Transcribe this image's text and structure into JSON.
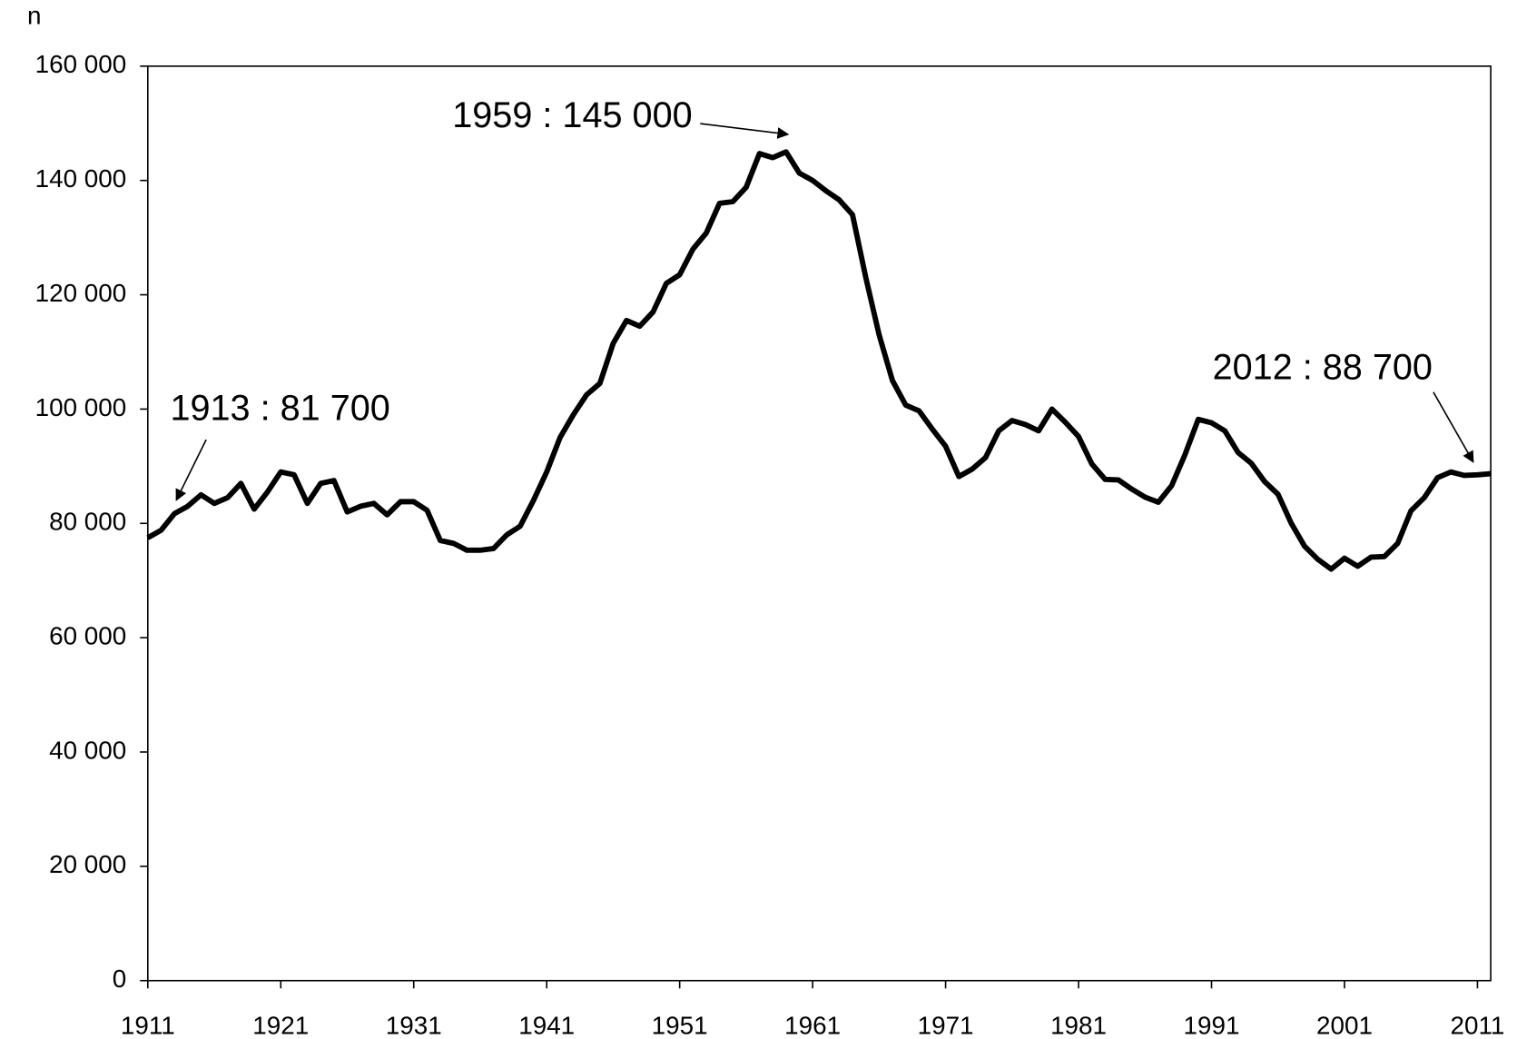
{
  "chart_data": {
    "type": "line",
    "y_label": "n",
    "x": [
      1911,
      1912,
      1913,
      1914,
      1915,
      1916,
      1917,
      1918,
      1919,
      1920,
      1921,
      1922,
      1923,
      1924,
      1925,
      1926,
      1927,
      1928,
      1929,
      1930,
      1931,
      1932,
      1933,
      1934,
      1935,
      1936,
      1937,
      1938,
      1939,
      1940,
      1941,
      1942,
      1943,
      1944,
      1945,
      1946,
      1947,
      1948,
      1949,
      1950,
      1951,
      1952,
      1953,
      1954,
      1955,
      1956,
      1957,
      1958,
      1959,
      1960,
      1961,
      1962,
      1963,
      1964,
      1965,
      1966,
      1967,
      1968,
      1969,
      1970,
      1971,
      1972,
      1973,
      1974,
      1975,
      1976,
      1977,
      1978,
      1979,
      1980,
      1981,
      1982,
      1983,
      1984,
      1985,
      1986,
      1987,
      1988,
      1989,
      1990,
      1991,
      1992,
      1993,
      1994,
      1995,
      1996,
      1997,
      1998,
      1999,
      2000,
      2001,
      2002,
      2003,
      2004,
      2005,
      2006,
      2007,
      2008,
      2009,
      2010,
      2011,
      2012
    ],
    "series": [
      {
        "color": "#000000",
        "values": [
          77500,
          78800,
          81700,
          83000,
          85000,
          83500,
          84500,
          87000,
          82500,
          85500,
          89000,
          88500,
          83500,
          87000,
          87500,
          82000,
          83000,
          83500,
          81500,
          83800,
          83800,
          82300,
          77000,
          76500,
          75300,
          75300,
          75600,
          78000,
          79500,
          84000,
          89000,
          95000,
          99000,
          102500,
          104500,
          111500,
          115500,
          114500,
          117000,
          122000,
          123500,
          128000,
          130800,
          136000,
          136300,
          138800,
          144700,
          144000,
          145000,
          141300,
          140000,
          138200,
          136600,
          134000,
          123000,
          113000,
          105000,
          100700,
          99700,
          96500,
          93500,
          88200,
          89500,
          91500,
          96200,
          98000,
          97300,
          96200,
          100000,
          97700,
          95200,
          90400,
          87700,
          87600,
          86000,
          84600,
          83700,
          86600,
          92000,
          98200,
          97600,
          96200,
          92400,
          90500,
          87300,
          85100,
          80000,
          76000,
          73700,
          72000,
          73900,
          72500,
          74100,
          74200,
          76500,
          82200,
          84500,
          88000,
          89000,
          88400,
          88500,
          88700
        ]
      }
    ],
    "xlim": [
      1911,
      2012
    ],
    "xticks": [
      1911,
      1921,
      1931,
      1941,
      1951,
      1961,
      1971,
      1981,
      1991,
      2001,
      2011
    ],
    "ylim": [
      0,
      160000
    ],
    "yticks": [
      0,
      {
        "value": 20000,
        "label": "20 000"
      },
      {
        "value": 40000,
        "label": "40 000"
      },
      {
        "value": 60000,
        "label": "60 000"
      },
      {
        "value": 80000,
        "label": "80 000"
      },
      {
        "value": 100000,
        "label": "100 000"
      },
      {
        "value": 120000,
        "label": "120 000"
      },
      {
        "value": 140000,
        "label": "140 000"
      },
      {
        "value": 160000,
        "label": "160 000"
      }
    ],
    "annotations": [
      {
        "text": "1913 : 81 700",
        "x": 1913
      },
      {
        "text": "1959 : 145 000",
        "x": 1959
      },
      {
        "text": "2012 : 88 700",
        "x": 2012
      }
    ]
  }
}
